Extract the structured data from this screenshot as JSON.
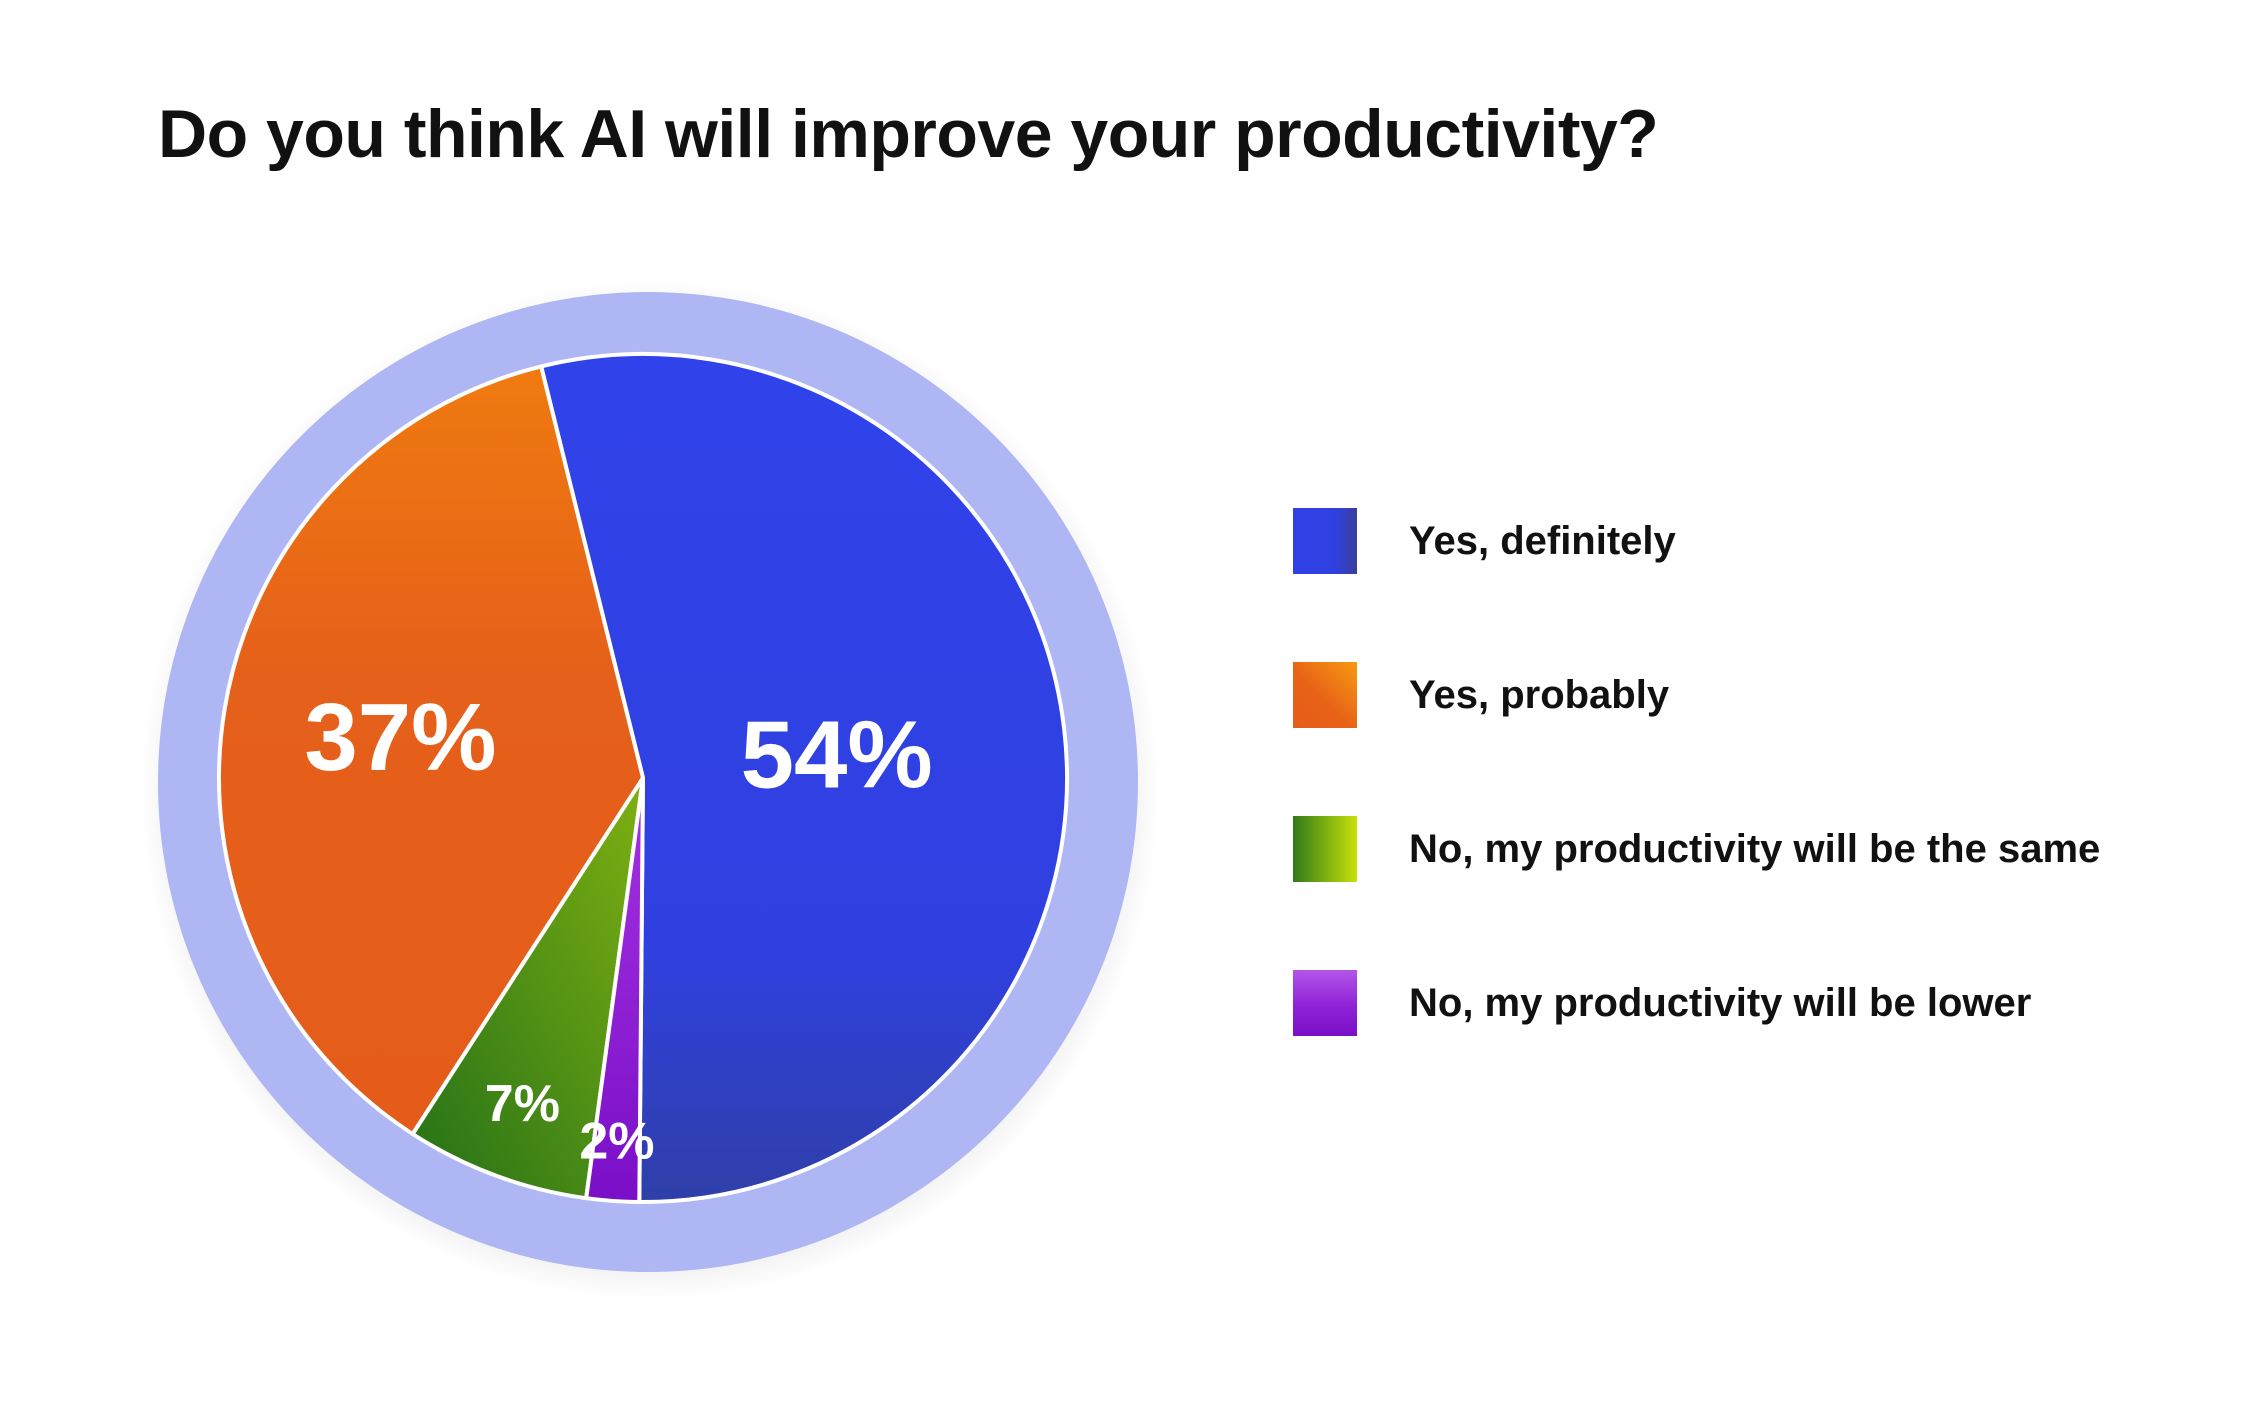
{
  "chart_data": {
    "type": "pie",
    "title": "Do you think AI will improve your productivity?",
    "categories": [
      "Yes, definitely",
      "Yes, probably",
      "No, my productivity will be the same",
      "No, my productivity will be lower"
    ],
    "values": [
      54,
      37,
      7,
      2
    ],
    "data_labels": [
      "54%",
      "37%",
      "7%",
      "2%"
    ],
    "colors": [
      "#3040e6",
      "#e86318",
      "#3c8a1a",
      "#8a18d0"
    ],
    "ring_color": "#aeb6f3",
    "legend_position": "right"
  }
}
